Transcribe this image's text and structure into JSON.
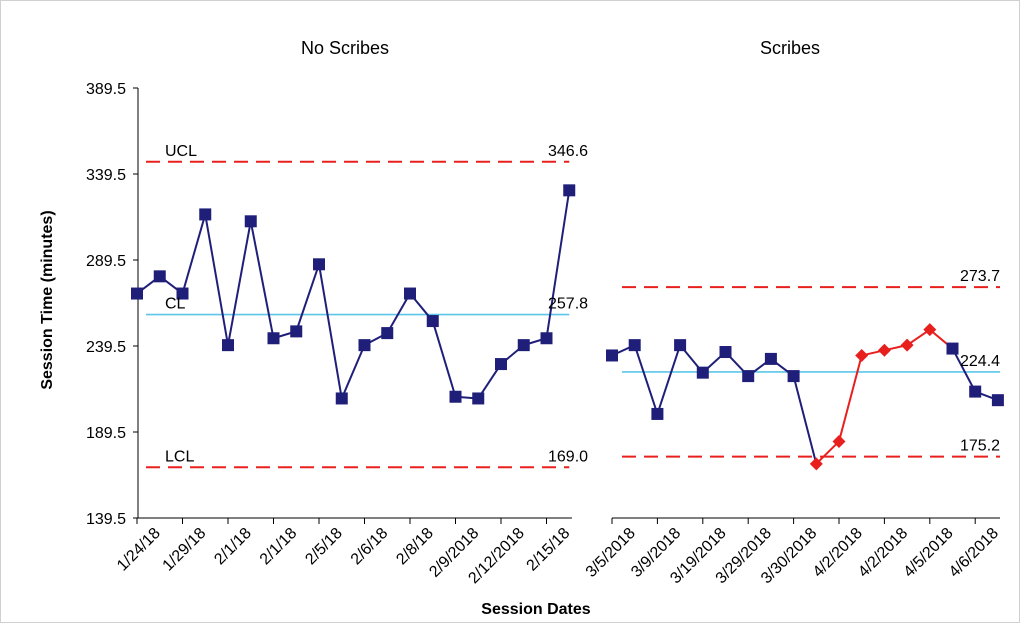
{
  "chart_data": {
    "type": "line",
    "ylabel": "Session Time (minutes)",
    "xlabel": "Session Dates",
    "ylim": [
      139.5,
      389.5
    ],
    "yticks": [
      "389.5",
      "339.5",
      "289.5",
      "239.5",
      "189.5",
      "139.5"
    ],
    "panels": [
      {
        "title": "No Scribes",
        "tick_labels": [
          "1/24/18",
          "1/29/18",
          "2/1/18",
          "2/1/18",
          "2/5/18",
          "2/6/18",
          "2/8/18",
          "2/9/2018",
          "2/12/2018",
          "2/15/18"
        ],
        "points": [
          270,
          280,
          270,
          316,
          240,
          312,
          244,
          248,
          287,
          209,
          240,
          247,
          270,
          254,
          210,
          209,
          229,
          240,
          244,
          330
        ],
        "highlight": [],
        "ucl": 346.6,
        "cl": 257.8,
        "lcl": 169.0,
        "ucl_label": "346.6",
        "cl_label": "257.8",
        "lcl_label": "169.0",
        "ref_names": {
          "ucl": "UCL",
          "cl": "CL",
          "lcl": "LCL"
        }
      },
      {
        "title": "Scribes",
        "tick_labels": [
          "3/5/2018",
          "3/9/2018",
          "3/19/2018",
          "3/29/2018",
          "3/30/2018",
          "4/2/2018",
          "4/2/2018",
          "4/5/2018",
          "4/6/2018"
        ],
        "points": [
          234,
          240,
          200,
          240,
          224,
          236,
          222,
          232,
          222,
          171,
          184,
          234,
          237,
          240,
          249,
          238,
          213,
          208
        ],
        "highlight": [
          9,
          10,
          11,
          12,
          13,
          14
        ],
        "ucl": 273.7,
        "cl": 224.4,
        "lcl": 175.2,
        "ucl_label": "273.7",
        "cl_label": "224.4",
        "lcl_label": "175.2",
        "ref_names": {
          "ucl": "",
          "cl": "",
          "lcl": ""
        }
      }
    ],
    "colors": {
      "series": "#1f1f7a",
      "highlight": "#e8201d",
      "center_line": "#5bc6e8",
      "control_limits": "#e8201d"
    }
  }
}
